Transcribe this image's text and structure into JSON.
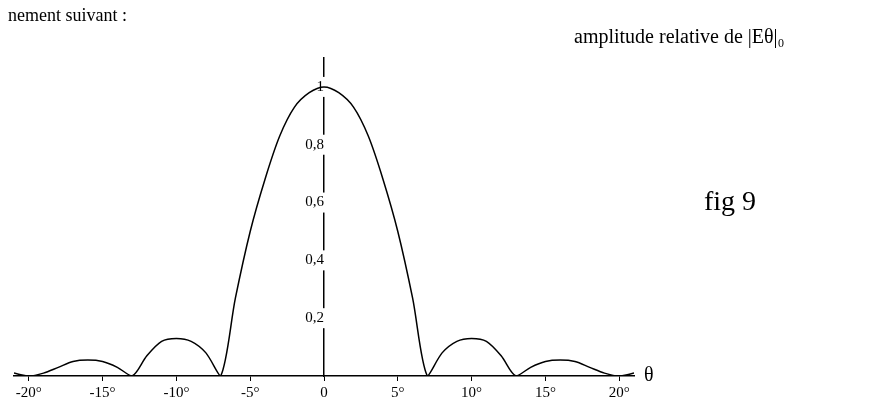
{
  "chart_data": {
    "type": "line",
    "caption": "nement suivant :",
    "y_label": "amplitude relative de |Eθ|₀",
    "x_label": "θ",
    "annotation": "fig 9",
    "x": [
      -21,
      -20,
      -19,
      -18,
      -17,
      -16,
      -15,
      -14,
      -13,
      -12,
      -11,
      -10,
      -9,
      -8,
      -7,
      -6,
      -5,
      -4,
      -3,
      -2,
      -1,
      0,
      1,
      2,
      3,
      4,
      5,
      6,
      7,
      8,
      9,
      10,
      11,
      12,
      13,
      14,
      15,
      16,
      17,
      18,
      19,
      20,
      21
    ],
    "values": [
      0.01,
      0.0,
      0.01,
      0.03,
      0.05,
      0.055,
      0.05,
      0.03,
      0.0,
      0.07,
      0.12,
      0.13,
      0.12,
      0.08,
      0.0,
      0.27,
      0.5,
      0.68,
      0.83,
      0.93,
      0.98,
      1.0,
      0.98,
      0.93,
      0.83,
      0.68,
      0.5,
      0.27,
      0.0,
      0.08,
      0.12,
      0.13,
      0.12,
      0.07,
      0.0,
      0.03,
      0.05,
      0.055,
      0.05,
      0.03,
      0.01,
      0.0,
      0.01
    ],
    "color": "#000000",
    "marker": "none",
    "line_style": "solid",
    "xlim": [
      -21,
      21
    ],
    "xticks": [
      {
        "value": -20,
        "label": "-20°"
      },
      {
        "value": -15,
        "label": "-15°"
      },
      {
        "value": -10,
        "label": "-10°"
      },
      {
        "value": -5,
        "label": "-5°"
      },
      0,
      {
        "value": 5,
        "label": "5°"
      },
      {
        "value": 10,
        "label": "10°"
      },
      {
        "value": 15,
        "label": "15°"
      },
      {
        "value": 20,
        "label": "20°"
      }
    ],
    "ylim": [
      0,
      1.1
    ],
    "yticks": [
      {
        "value": 0.2,
        "label": "0,2"
      },
      {
        "value": 0.4,
        "label": "0,4"
      },
      {
        "value": 0.6,
        "label": "0,6"
      },
      {
        "value": 0.8,
        "label": "0,8"
      },
      1
    ],
    "grid": false
  }
}
